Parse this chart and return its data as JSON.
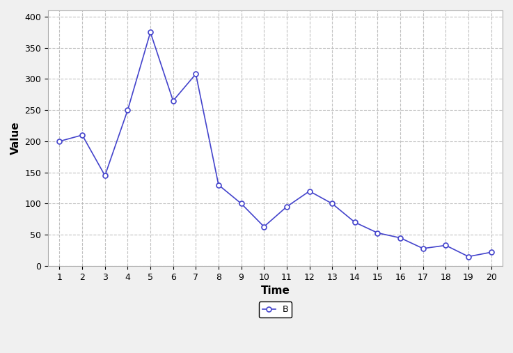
{
  "x": [
    1,
    2,
    3,
    4,
    5,
    6,
    7,
    8,
    9,
    10,
    11,
    12,
    13,
    14,
    15,
    16,
    17,
    18,
    19,
    20
  ],
  "y": [
    200,
    210,
    145,
    250,
    375,
    265,
    308,
    130,
    100,
    63,
    95,
    120,
    100,
    70,
    53,
    45,
    28,
    33,
    15,
    22
  ],
  "line_color": "#4444cc",
  "marker_face": "#ffffff",
  "marker_edge": "#4444cc",
  "xlabel": "Time",
  "ylabel": "Value",
  "xlim": [
    0.5,
    20.5
  ],
  "ylim": [
    0,
    410
  ],
  "yticks": [
    0,
    50,
    100,
    150,
    200,
    250,
    300,
    350,
    400
  ],
  "xticks": [
    1,
    2,
    3,
    4,
    5,
    6,
    7,
    8,
    9,
    10,
    11,
    12,
    13,
    14,
    15,
    16,
    17,
    18,
    19,
    20
  ],
  "grid_color": "#bbbbbb",
  "bg_color": "#f0f0f0",
  "plot_bg": "#ffffff",
  "legend_label": "B",
  "title_fontsize": 11,
  "axis_fontsize": 11,
  "tick_fontsize": 9
}
